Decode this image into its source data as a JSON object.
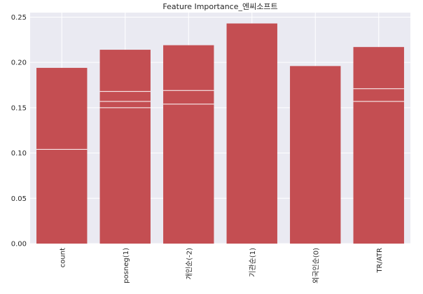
{
  "chart_data": {
    "type": "bar",
    "title": "Feature Importance_엔씨소프트",
    "xlabel": "",
    "ylabel": "",
    "categories": [
      "count",
      "posneg(1)",
      "개인순(-2)",
      "기관순(1)",
      "외국인순(0)",
      "TR/ATR"
    ],
    "values": [
      0.194,
      0.214,
      0.219,
      0.243,
      0.196,
      0.217
    ],
    "overlay_lines": [
      [
        0.104
      ],
      [
        0.15,
        0.157,
        0.168
      ],
      [
        0.154,
        0.169
      ],
      [],
      [],
      [
        0.157,
        0.171
      ]
    ],
    "ylim": [
      0,
      0.255
    ],
    "yticks": [
      "0.00",
      "0.05",
      "0.10",
      "0.15",
      "0.20",
      "0.25"
    ],
    "ytick_values": [
      0,
      0.05,
      0.1,
      0.15,
      0.2,
      0.25
    ],
    "grid": true,
    "colors": {
      "bar": "#c44e52",
      "plot_bg": "#eaeaf2",
      "grid": "#ffffff"
    }
  }
}
